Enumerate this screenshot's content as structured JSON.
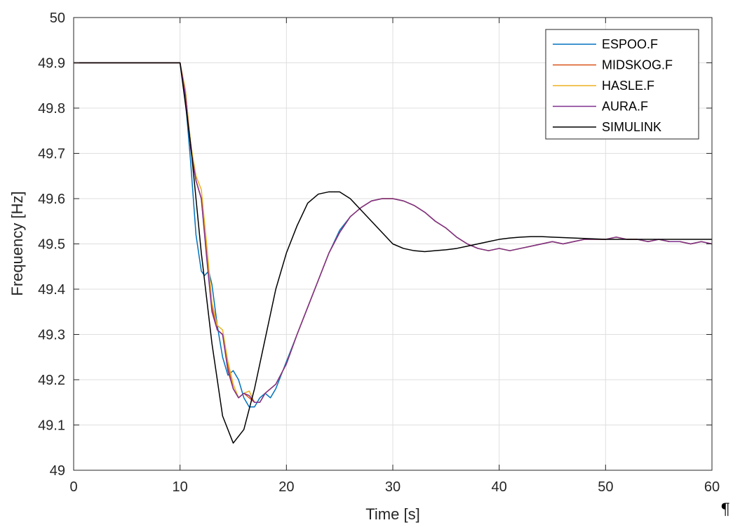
{
  "chart_data": {
    "type": "line",
    "title": "",
    "xlabel": "Time [s]",
    "ylabel": "Frequency [Hz]",
    "xlim": [
      0,
      60
    ],
    "ylim": [
      49,
      50
    ],
    "xticks": [
      0,
      10,
      20,
      30,
      40,
      50,
      60
    ],
    "xtick_labels": [
      "0",
      "10",
      "20",
      "30",
      "40",
      "50",
      "60"
    ],
    "yticks": [
      49,
      49.1,
      49.2,
      49.3,
      49.4,
      49.5,
      49.6,
      49.7,
      49.8,
      49.9,
      50
    ],
    "ytick_labels": [
      "49",
      "49.1",
      "49.2",
      "49.3",
      "49.4",
      "49.5",
      "49.6",
      "49.7",
      "49.8",
      "49.9",
      "50"
    ],
    "grid": true,
    "legend_position": "top-right",
    "series": [
      {
        "name": "ESPOO.F",
        "color": "#0072BD",
        "x": [
          0,
          10,
          10.5,
          11,
          11.5,
          12,
          12.3,
          12.7,
          13,
          13.5,
          14,
          14.5,
          15,
          15.5,
          16,
          16.5,
          17,
          17.5,
          18,
          18.5,
          19,
          20,
          21,
          22,
          23,
          24,
          25,
          26,
          27,
          28,
          29,
          30,
          31,
          32,
          33,
          34,
          35,
          36,
          37,
          38,
          39,
          40,
          41,
          42,
          43,
          44,
          45,
          46,
          47,
          48,
          49,
          50,
          51,
          52,
          53,
          54,
          55,
          56,
          57,
          58,
          59,
          60
        ],
        "y": [
          49.9,
          49.9,
          49.82,
          49.68,
          49.52,
          49.44,
          49.43,
          49.44,
          49.41,
          49.32,
          49.25,
          49.21,
          49.22,
          49.2,
          49.16,
          49.14,
          49.14,
          49.16,
          49.17,
          49.16,
          49.18,
          49.24,
          49.3,
          49.36,
          49.42,
          49.48,
          49.53,
          49.56,
          49.58,
          49.595,
          49.6,
          49.6,
          49.595,
          49.585,
          49.57,
          49.55,
          49.535,
          49.515,
          49.5,
          49.49,
          49.485,
          49.49,
          49.485,
          49.49,
          49.495,
          49.5,
          49.505,
          49.5,
          49.505,
          49.51,
          49.51,
          49.51,
          49.515,
          49.51,
          49.51,
          49.505,
          49.51,
          49.505,
          49.505,
          49.5,
          49.505,
          49.5
        ]
      },
      {
        "name": "MIDSKOG.F",
        "color": "#D95319",
        "x": [
          0,
          10,
          10.5,
          11,
          11.5,
          12,
          12.5,
          13,
          13.5,
          14,
          14.5,
          15,
          15.5,
          16,
          16.5,
          17,
          17.5,
          18,
          18.5,
          19,
          20,
          21,
          22,
          23,
          24,
          25,
          26,
          27,
          28,
          29,
          30,
          31,
          32,
          33,
          34,
          35,
          36,
          37,
          38,
          39,
          40,
          41,
          42,
          43,
          44,
          45,
          46,
          47,
          48,
          49,
          50,
          51,
          52,
          53,
          54,
          55,
          56,
          57,
          58,
          59,
          60
        ],
        "y": [
          49.9,
          49.9,
          49.84,
          49.72,
          49.64,
          49.6,
          49.48,
          49.36,
          49.31,
          49.3,
          49.23,
          49.18,
          49.16,
          49.17,
          49.16,
          49.15,
          49.15,
          49.17,
          49.18,
          49.19,
          49.235,
          49.3,
          49.36,
          49.42,
          49.48,
          49.525,
          49.56,
          49.58,
          49.595,
          49.6,
          49.6,
          49.595,
          49.585,
          49.57,
          49.55,
          49.535,
          49.515,
          49.5,
          49.49,
          49.485,
          49.49,
          49.485,
          49.49,
          49.495,
          49.5,
          49.505,
          49.5,
          49.505,
          49.51,
          49.51,
          49.51,
          49.515,
          49.51,
          49.51,
          49.505,
          49.51,
          49.505,
          49.505,
          49.5,
          49.505,
          49.5
        ]
      },
      {
        "name": "HASLE.F",
        "color": "#EDB120",
        "x": [
          0,
          10,
          10.5,
          11,
          11.5,
          12,
          12.5,
          13,
          13.5,
          14,
          14.5,
          15,
          15.5,
          16,
          16.5,
          17,
          17.5,
          18,
          18.5,
          19,
          20,
          21,
          22,
          23,
          24,
          25,
          26,
          27,
          28,
          29,
          30,
          31,
          32,
          33,
          34,
          35,
          36,
          37,
          38,
          39,
          40,
          41,
          42,
          43,
          44,
          45,
          46,
          47,
          48,
          49,
          50,
          51,
          52,
          53,
          54,
          55,
          56,
          57,
          58,
          59,
          60
        ],
        "y": [
          49.9,
          49.9,
          49.84,
          49.72,
          49.65,
          49.62,
          49.5,
          49.37,
          49.32,
          49.31,
          49.24,
          49.19,
          49.16,
          49.17,
          49.175,
          49.15,
          49.15,
          49.17,
          49.18,
          49.19,
          49.235,
          49.3,
          49.36,
          49.42,
          49.48,
          49.525,
          49.56,
          49.58,
          49.595,
          49.6,
          49.6,
          49.595,
          49.585,
          49.57,
          49.55,
          49.535,
          49.515,
          49.5,
          49.49,
          49.485,
          49.49,
          49.485,
          49.49,
          49.495,
          49.5,
          49.505,
          49.5,
          49.505,
          49.51,
          49.51,
          49.51,
          49.515,
          49.51,
          49.51,
          49.505,
          49.51,
          49.505,
          49.505,
          49.5,
          49.505,
          49.5
        ]
      },
      {
        "name": "AURA.F",
        "color": "#7E2F8E",
        "x": [
          0,
          10,
          10.5,
          11,
          11.5,
          12,
          12.5,
          13,
          13.5,
          14,
          14.5,
          15,
          15.5,
          16,
          16.5,
          17,
          17.5,
          18,
          18.5,
          19,
          20,
          21,
          22,
          23,
          24,
          25,
          26,
          27,
          28,
          29,
          30,
          31,
          32,
          33,
          34,
          35,
          36,
          37,
          38,
          39,
          40,
          41,
          42,
          43,
          44,
          45,
          46,
          47,
          48,
          49,
          50,
          51,
          52,
          53,
          54,
          55,
          56,
          57,
          58,
          59,
          60
        ],
        "y": [
          49.9,
          49.9,
          49.83,
          49.71,
          49.64,
          49.6,
          49.47,
          49.35,
          49.31,
          49.3,
          49.22,
          49.18,
          49.16,
          49.17,
          49.165,
          49.15,
          49.15,
          49.17,
          49.18,
          49.19,
          49.235,
          49.3,
          49.36,
          49.42,
          49.48,
          49.525,
          49.56,
          49.58,
          49.595,
          49.6,
          49.6,
          49.595,
          49.585,
          49.57,
          49.55,
          49.535,
          49.515,
          49.5,
          49.49,
          49.485,
          49.49,
          49.485,
          49.49,
          49.495,
          49.5,
          49.505,
          49.5,
          49.505,
          49.51,
          49.51,
          49.51,
          49.515,
          49.51,
          49.51,
          49.505,
          49.51,
          49.505,
          49.505,
          49.5,
          49.505,
          49.5
        ]
      },
      {
        "name": "SIMULINK",
        "color": "#000000",
        "x": [
          0,
          10,
          11,
          12,
          13,
          14,
          15,
          16,
          17,
          18,
          19,
          20,
          21,
          22,
          23,
          24,
          25,
          26,
          27,
          28,
          29,
          30,
          31,
          32,
          33,
          34,
          35,
          36,
          37,
          38,
          39,
          40,
          41,
          42,
          43,
          44,
          45,
          46,
          47,
          48,
          50,
          55,
          60
        ],
        "y": [
          49.9,
          49.9,
          49.72,
          49.48,
          49.28,
          49.12,
          49.06,
          49.09,
          49.18,
          49.29,
          49.4,
          49.48,
          49.54,
          49.59,
          49.61,
          49.615,
          49.615,
          49.6,
          49.575,
          49.55,
          49.525,
          49.5,
          49.49,
          49.485,
          49.483,
          49.485,
          49.487,
          49.49,
          49.495,
          49.5,
          49.505,
          49.51,
          49.513,
          49.515,
          49.516,
          49.516,
          49.515,
          49.514,
          49.513,
          49.512,
          49.51,
          49.51,
          49.51
        ]
      }
    ]
  },
  "mark": {
    "pilcrow": "¶"
  }
}
